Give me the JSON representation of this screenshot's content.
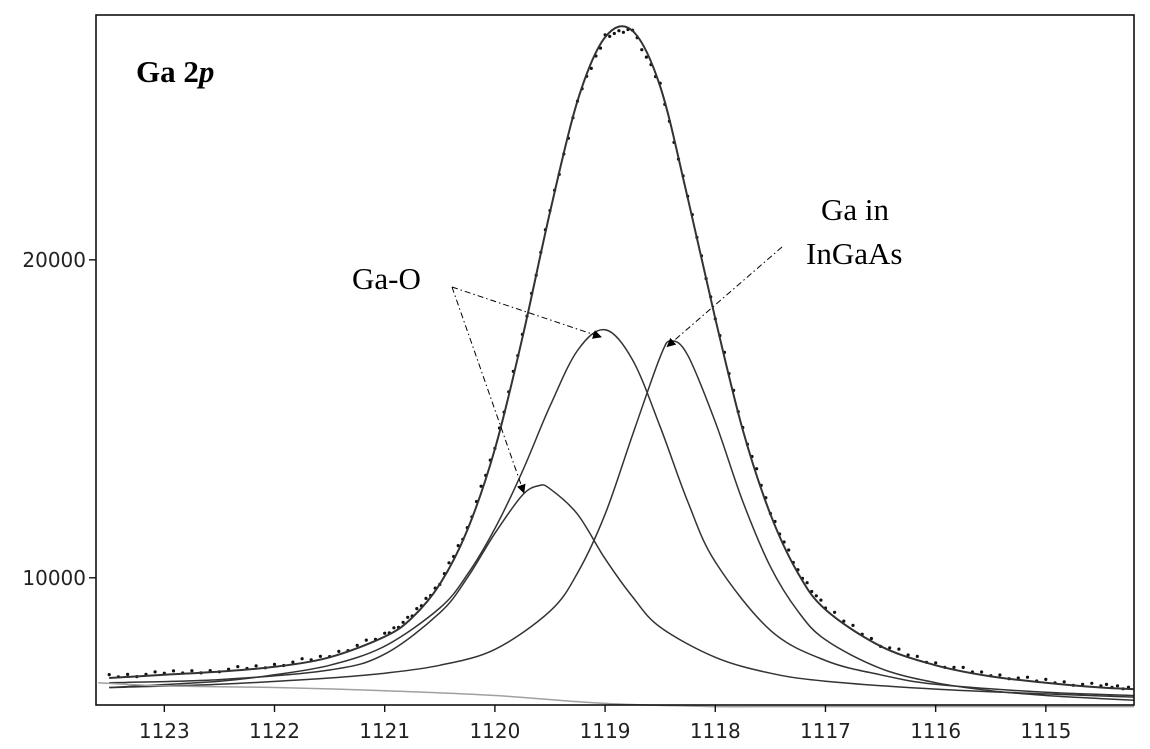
{
  "chart_data": {
    "type": "line",
    "title": "",
    "xlabel": "",
    "ylabel": "",
    "x_reversed": true,
    "xlim": [
      1123.62,
      1114.2
    ],
    "ylim": [
      6000,
      27700
    ],
    "x_ticks": [
      1123,
      1122,
      1121,
      1120,
      1119,
      1118,
      1117,
      1116,
      1115
    ],
    "y_ticks": [
      10000,
      20000
    ],
    "grid": false,
    "legend": "none",
    "panel_label": {
      "prefix": "Ga 2",
      "suffix": "p"
    },
    "annotations": [
      {
        "text": "Ga-O",
        "points_to": [
          [
            1119.0,
            17700
          ],
          [
            1119.7,
            12800
          ]
        ]
      },
      {
        "text_lines": [
          "Ga in",
          "InGaAs"
        ],
        "points_to": [
          [
            1118.4,
            17400
          ]
        ]
      }
    ],
    "series": [
      {
        "role": "measured",
        "style": "dots",
        "color": "#111111",
        "x": [
          1123.5,
          1123.0,
          1122.5,
          1122.0,
          1121.5,
          1121.0,
          1120.75,
          1120.5,
          1120.25,
          1120.0,
          1119.75,
          1119.5,
          1119.25,
          1119.0,
          1118.75,
          1118.5,
          1118.25,
          1118.0,
          1117.75,
          1117.5,
          1117.25,
          1117.0,
          1116.5,
          1116.0,
          1115.5,
          1115.0,
          1114.5,
          1114.2
        ],
        "y": [
          6900,
          7000,
          7100,
          7250,
          7550,
          8200,
          8800,
          9850,
          11550,
          14100,
          17600,
          21550,
          25050,
          27050,
          27250,
          25500,
          22000,
          18200,
          14700,
          12050,
          10200,
          9050,
          7900,
          7300,
          6950,
          6750,
          6600,
          6550
        ]
      },
      {
        "role": "envelope",
        "style": "line",
        "color": "#333333",
        "x": [
          1123.5,
          1123.0,
          1122.5,
          1122.0,
          1121.5,
          1121.0,
          1120.75,
          1120.5,
          1120.25,
          1120.0,
          1119.75,
          1119.5,
          1119.25,
          1119.0,
          1118.75,
          1118.5,
          1118.25,
          1118.0,
          1117.75,
          1117.5,
          1117.25,
          1117.0,
          1116.5,
          1116.0,
          1115.5,
          1115.0,
          1114.5,
          1114.2
        ],
        "y": [
          6850,
          6950,
          7050,
          7200,
          7500,
          8150,
          8750,
          9800,
          11500,
          14050,
          17550,
          21500,
          25000,
          27000,
          27200,
          25450,
          21950,
          18150,
          14650,
          12000,
          10150,
          9000,
          7850,
          7250,
          6900,
          6700,
          6550,
          6500
        ]
      },
      {
        "role": "component",
        "style": "line",
        "color": "#333333",
        "x": [
          1123.5,
          1122.5,
          1121.5,
          1121.0,
          1120.5,
          1120.25,
          1120.0,
          1119.75,
          1119.6,
          1119.5,
          1119.25,
          1119.0,
          1118.75,
          1118.5,
          1118.0,
          1117.5,
          1117.0,
          1116.0,
          1115.0,
          1114.2
        ],
        "y": [
          6700,
          6800,
          7100,
          7600,
          8900,
          10000,
          11400,
          12600,
          12900,
          12800,
          12000,
          10600,
          9400,
          8450,
          7500,
          7000,
          6750,
          6500,
          6350,
          6250
        ]
      },
      {
        "role": "component",
        "style": "line",
        "color": "#333333",
        "x": [
          1123.5,
          1122.5,
          1122.0,
          1121.5,
          1121.0,
          1120.5,
          1120.25,
          1120.0,
          1119.75,
          1119.5,
          1119.25,
          1119.0,
          1118.75,
          1118.5,
          1118.25,
          1118.0,
          1117.5,
          1117.0,
          1116.5,
          1116.0,
          1115.0,
          1114.2
        ],
        "y": [
          6550,
          6750,
          6950,
          7250,
          7850,
          9050,
          10100,
          11550,
          13350,
          15400,
          17150,
          17800,
          16850,
          14750,
          12400,
          10500,
          8350,
          7400,
          6950,
          6650,
          6400,
          6300
        ]
      },
      {
        "role": "component",
        "style": "line",
        "color": "#333333",
        "x": [
          1123.5,
          1122.5,
          1121.5,
          1121.0,
          1120.5,
          1120.0,
          1119.5,
          1119.25,
          1119.0,
          1118.75,
          1118.5,
          1118.4,
          1118.25,
          1118.0,
          1117.75,
          1117.5,
          1117.25,
          1117.0,
          1116.5,
          1116.0,
          1115.5,
          1115.0,
          1114.5,
          1114.2
        ],
        "y": [
          6550,
          6650,
          6850,
          7000,
          7250,
          7750,
          8950,
          10150,
          12000,
          14500,
          16950,
          17450,
          17000,
          14900,
          12400,
          10350,
          8950,
          8050,
          7150,
          6700,
          6450,
          6300,
          6200,
          6150
        ]
      },
      {
        "role": "background",
        "style": "line",
        "color": "#a0a0a0",
        "x": [
          1123.6,
          1123.0,
          1122.0,
          1121.0,
          1120.0,
          1119.0,
          1118.0,
          1117.6,
          1117.0,
          1116.0,
          1115.0,
          1114.2
        ],
        "y": [
          6700,
          6600,
          6550,
          6450,
          6300,
          6050,
          5950,
          5950,
          5950,
          5950,
          5950,
          5950
        ]
      }
    ]
  }
}
